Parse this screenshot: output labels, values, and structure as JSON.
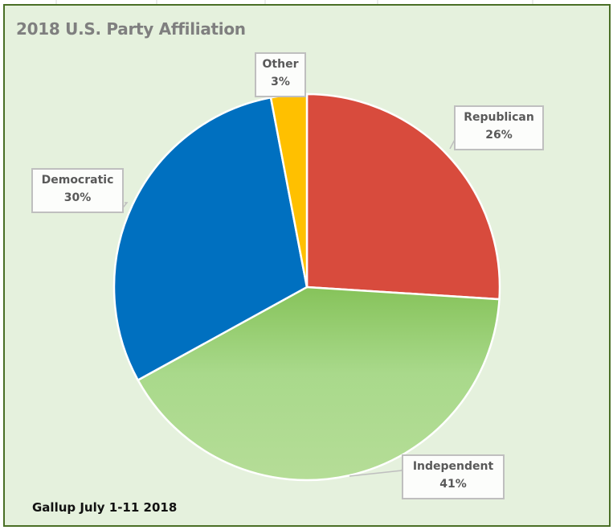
{
  "chart_data": {
    "type": "pie",
    "title": "2018 U.S. Party Affiliation",
    "source_note": "Gallup July 1-11 2018",
    "categories": [
      "Republican",
      "Independent",
      "Democratic",
      "Other"
    ],
    "values": [
      26,
      41,
      30,
      3
    ],
    "value_labels": [
      "26%",
      "41%",
      "30%",
      "3%"
    ],
    "colors": [
      "#d84b3d",
      "#9fd07a",
      "#0070c0",
      "#ffc000"
    ],
    "start_angle_deg": 0,
    "direction": "clockwise",
    "legend": "none"
  }
}
